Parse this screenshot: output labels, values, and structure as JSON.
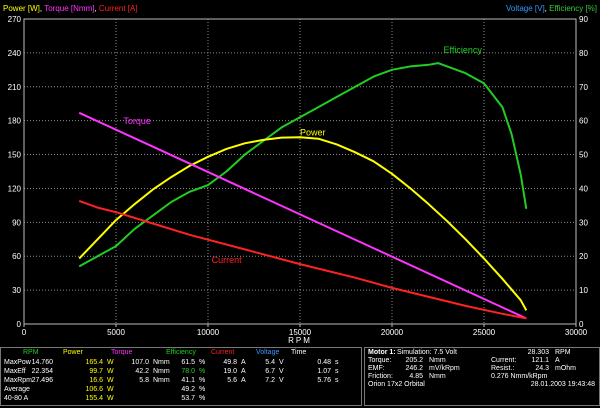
{
  "chart_data": {
    "type": "line",
    "header_left": [
      {
        "text": "Power [W]",
        "color": "#ffff00"
      },
      {
        "text": ", ",
        "color": "#ffffff"
      },
      {
        "text": "Torque [Nmm]",
        "color": "#ff33ff"
      },
      {
        "text": ", ",
        "color": "#ffffff"
      },
      {
        "text": "Current [A]",
        "color": "#ff2222"
      }
    ],
    "header_right": [
      {
        "text": "Voltage [V]",
        "color": "#3399ff"
      },
      {
        "text": ", ",
        "color": "#ffffff"
      },
      {
        "text": "Efficiency [%]",
        "color": "#33cc33"
      }
    ],
    "xlabel": "RPM",
    "xlim": [
      0,
      30000
    ],
    "x_ticks": [
      "0",
      "5000",
      "10000",
      "15000",
      "20000",
      "25000",
      "30000"
    ],
    "ylim_left": [
      0,
      270
    ],
    "y_ticks_left": [
      "0",
      "30",
      "60",
      "90",
      "120",
      "150",
      "180",
      "210",
      "240",
      "270"
    ],
    "ylim_right": [
      0,
      90
    ],
    "y_ticks_right": [
      "0",
      "10",
      "20",
      "30",
      "40",
      "50",
      "60",
      "70",
      "80",
      "90"
    ],
    "series": [
      {
        "name": "Efficiency",
        "color": "#22cc22",
        "axis": "right",
        "x": [
          3000,
          4000,
          5000,
          6000,
          7000,
          8000,
          9000,
          10000,
          11000,
          12000,
          13000,
          14000,
          15000,
          16000,
          17000,
          18000,
          19000,
          20000,
          21000,
          22000,
          22500,
          23000,
          24000,
          25000,
          26000,
          26500,
          27000,
          27300
        ],
        "y": [
          17,
          20,
          23,
          28,
          32,
          36,
          39,
          41,
          45,
          50,
          54,
          58,
          61,
          64,
          67,
          70,
          73,
          75,
          76,
          76.5,
          77,
          76,
          74,
          71,
          64,
          56,
          44,
          34
        ]
      },
      {
        "name": "Power",
        "color": "#ffff00",
        "axis": "left",
        "x": [
          3000,
          4000,
          5000,
          6000,
          7000,
          8000,
          9000,
          10000,
          11000,
          12000,
          13000,
          14000,
          15000,
          16000,
          17000,
          18000,
          19000,
          20000,
          21000,
          22000,
          23000,
          24000,
          25000,
          26000,
          27000,
          27300
        ],
        "y": [
          58,
          75,
          92,
          106,
          119,
          130,
          140,
          148,
          155,
          160,
          163,
          165,
          165.4,
          164,
          159,
          152,
          144,
          133,
          120,
          106,
          91,
          75,
          58,
          40,
          21,
          12
        ]
      },
      {
        "name": "Torque",
        "color": "#ff33ff",
        "axis": "left",
        "x": [
          3000,
          27300
        ],
        "y": [
          187,
          5
        ]
      },
      {
        "name": "Current",
        "color": "#ff2222",
        "axis": "left",
        "x": [
          3000,
          4000,
          5000,
          7000,
          9000,
          12000,
          15000,
          18000,
          20000,
          22000,
          24000,
          26000,
          27300
        ],
        "y": [
          109,
          103,
          99,
          89,
          79,
          66,
          53,
          41,
          32,
          24,
          16,
          9,
          5
        ]
      }
    ],
    "annotations": [
      {
        "text": "Efficiency",
        "color": "#22cc22",
        "x": 22800,
        "y": 240
      },
      {
        "text": "Power",
        "color": "#ffff00",
        "x": 15000,
        "y": 167
      },
      {
        "text": "Torque",
        "color": "#ff33ff",
        "x": 5400,
        "y": 177
      },
      {
        "text": "Current",
        "color": "#ff2222",
        "x": 10200,
        "y": 54
      }
    ]
  },
  "table": {
    "header": [
      {
        "text": "RPM",
        "color": "#22cc22"
      },
      {
        "text": "Power",
        "color": "#ffff00"
      },
      {
        "text": "Torque",
        "color": "#ff33ff"
      },
      {
        "text": "Efficiency",
        "color": "#22cc22"
      },
      {
        "text": "Current",
        "color": "#ff2222"
      },
      {
        "text": "Voltage",
        "color": "#3399ff"
      },
      {
        "text": "Time",
        "color": "#ffffff"
      }
    ],
    "rows": [
      [
        "MaxPow",
        "14.760",
        "165.4",
        "W",
        "107.0",
        "Nmm",
        "61.5",
        "%",
        "49.8",
        "A",
        "5.4",
        "V",
        "0.48",
        "s"
      ],
      [
        "MaxEff",
        "22.354",
        "99.7",
        "W",
        "42.2",
        "Nmm",
        "78.0",
        "%",
        "19.0",
        "A",
        "6.7",
        "V",
        "1.07",
        "s"
      ],
      [
        "MaxRpm",
        "27.496",
        "16.6",
        "W",
        "5.8",
        "Nmm",
        "41.1",
        "%",
        "5.6",
        "A",
        "7.2",
        "V",
        "5.76",
        "s"
      ],
      [
        "Average",
        "",
        "106.6",
        "W",
        "",
        "",
        "49.2",
        "%",
        "",
        "",
        "",
        "",
        "",
        ""
      ],
      [
        "40-80 A",
        "",
        "155.4",
        "W",
        "",
        "",
        "53.7",
        "%",
        "",
        "",
        "",
        "",
        "",
        ""
      ]
    ]
  },
  "info": {
    "motor_label": "Motor 1:",
    "simulation": "Simulation: 7.5 Volt",
    "rpm_value": "28.303",
    "rpm_unit": "RPM",
    "torque_label": "Torque:",
    "torque_value": "205.2",
    "torque_unit": "Nmm",
    "current_label": "Current:",
    "current_value": "121.1",
    "current_unit": "A",
    "emf_label": "EMF:",
    "emf_value": "246.2",
    "emf_unit": "mV/kRpm",
    "resist_label": "Resist.:",
    "resist_value": "24.3",
    "resist_unit": "mOhm",
    "friction_label": "Friction:",
    "friction_value": "4.85",
    "friction_unit": "Nmm",
    "kt": "0.276 Nmm/kRpm",
    "motor_name": "Orion 17x2 Orbital",
    "timestamp": "28.01.2003 19:43:48"
  }
}
